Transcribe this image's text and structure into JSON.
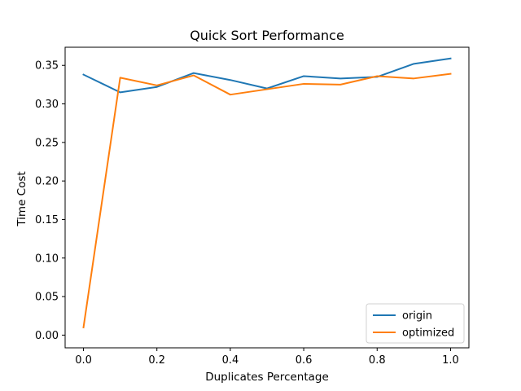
{
  "chart_data": {
    "type": "line",
    "title": "Quick Sort Performance",
    "xlabel": "Duplicates Percentage",
    "ylabel": "Time Cost",
    "xlim": [
      -0.05,
      1.05
    ],
    "ylim": [
      -0.0165,
      0.3735
    ],
    "xticks": [
      0.0,
      0.2,
      0.4,
      0.6,
      0.8,
      1.0
    ],
    "xtick_labels": [
      "0.0",
      "0.2",
      "0.4",
      "0.6",
      "0.8",
      "1.0"
    ],
    "yticks": [
      0.0,
      0.05,
      0.1,
      0.15,
      0.2,
      0.25,
      0.3,
      0.35
    ],
    "ytick_labels": [
      "0.00",
      "0.05",
      "0.10",
      "0.15",
      "0.20",
      "0.25",
      "0.30",
      "0.35"
    ],
    "grid": false,
    "legend_position": "bottom-right",
    "x": [
      0.0,
      0.1,
      0.2,
      0.3,
      0.4,
      0.5,
      0.6,
      0.7,
      0.8,
      0.9,
      1.0
    ],
    "series": [
      {
        "name": "origin",
        "color": "#1f77b4",
        "values": [
          0.338,
          0.315,
          0.322,
          0.34,
          0.331,
          0.32,
          0.336,
          0.333,
          0.335,
          0.352,
          0.359
        ]
      },
      {
        "name": "optimized",
        "color": "#ff7f0e",
        "values": [
          0.01,
          0.334,
          0.324,
          0.337,
          0.312,
          0.319,
          0.326,
          0.325,
          0.336,
          0.333,
          0.339
        ]
      }
    ]
  }
}
